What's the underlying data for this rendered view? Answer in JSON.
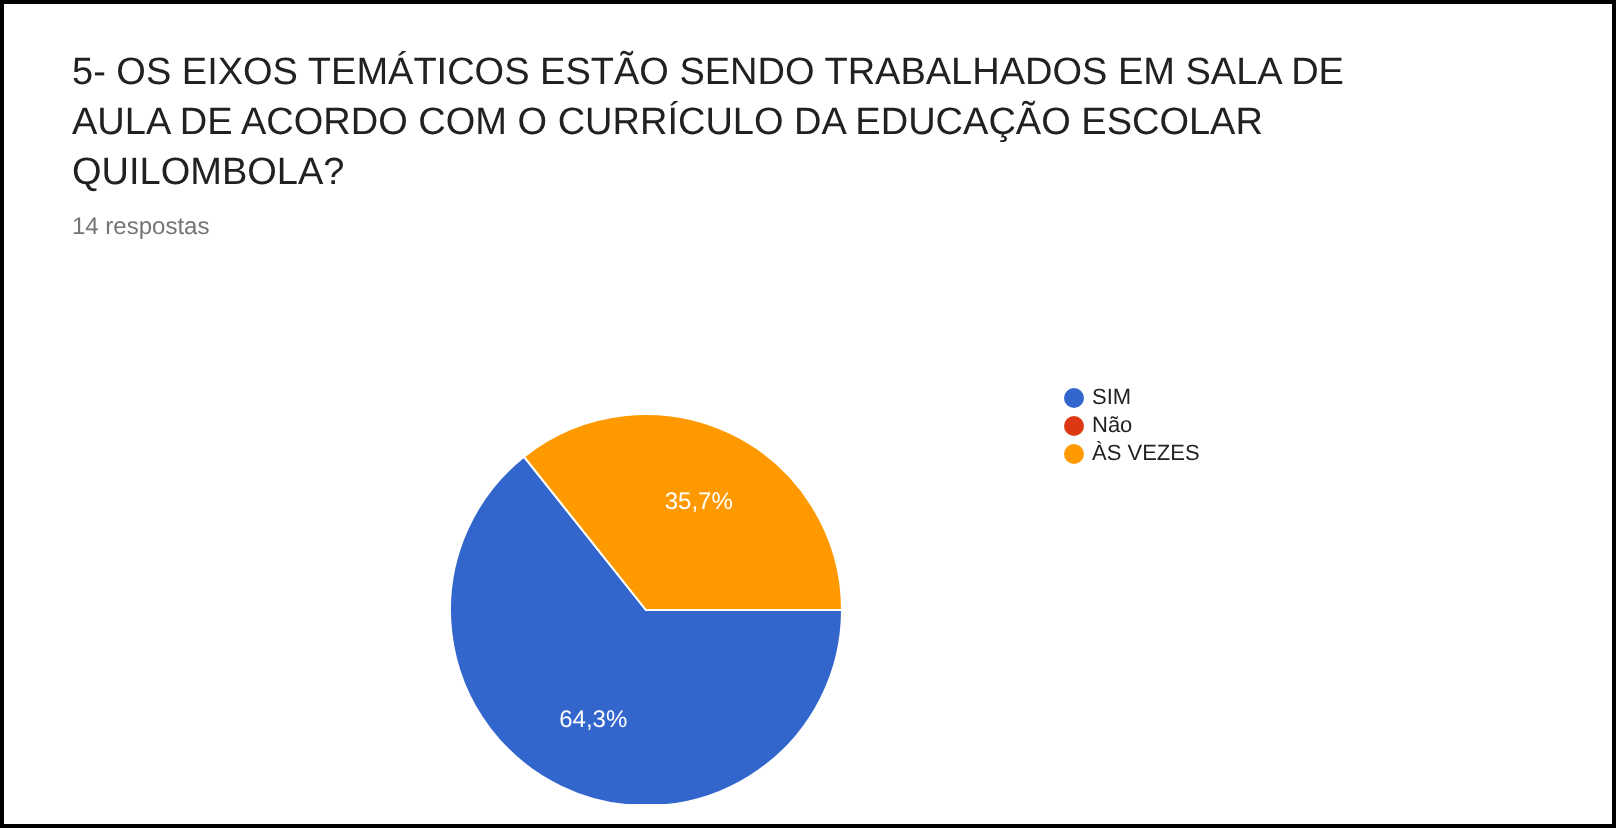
{
  "chart_data": {
    "type": "pie",
    "title": "5- OS EIXOS TEMÁTICOS ESTÃO SENDO TRABALHADOS EM SALA DE AULA DE ACORDO COM O CURRÍCULO DA EDUCAÇÃO ESCOLAR QUILOMBOLA?",
    "subtitle": "14 respostas",
    "categories": [
      "SIM",
      "Não",
      "ÀS VEZES"
    ],
    "values": [
      64.3,
      0,
      35.7
    ],
    "colors": [
      "#3366cc",
      "#dc3912",
      "#ff9900"
    ],
    "value_labels": [
      "64,3%",
      null,
      "35,7%"
    ],
    "legend": "right"
  }
}
